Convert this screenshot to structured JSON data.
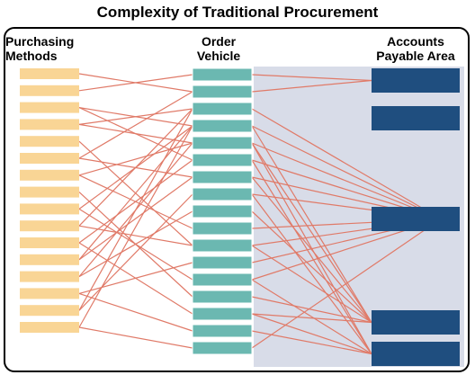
{
  "title": "Complexity of Traditional Procurement",
  "columns": {
    "left": {
      "line1": "Purchasing",
      "line2": "Methods"
    },
    "mid": {
      "line1": "Order",
      "line2": "Vehicle"
    },
    "right": {
      "line1": "Accounts",
      "line2": "Payable Area"
    }
  },
  "colors": {
    "left_box": "#f9d595",
    "mid_box": "#6bb8b1",
    "right_box": "#1f4e7f",
    "shade": "#d8dce8",
    "connector": "#e07a68"
  },
  "counts": {
    "left": 16,
    "mid": 17,
    "right": 5
  },
  "links_left_mid": [
    [
      1,
      0
    ],
    [
      2,
      3
    ],
    [
      2,
      5
    ],
    [
      3,
      2
    ],
    [
      3,
      4
    ],
    [
      5,
      1
    ],
    [
      5,
      6
    ],
    [
      6,
      4
    ],
    [
      6,
      9
    ],
    [
      8,
      3
    ],
    [
      8,
      12
    ],
    [
      9,
      2
    ],
    [
      10,
      5
    ],
    [
      10,
      14
    ],
    [
      11,
      3
    ],
    [
      12,
      4
    ],
    [
      12,
      8
    ],
    [
      13,
      11
    ],
    [
      14,
      2
    ],
    [
      14,
      7
    ],
    [
      15,
      3
    ],
    [
      15,
      16
    ],
    [
      4,
      10
    ],
    [
      7,
      13
    ],
    [
      0,
      1
    ],
    [
      11,
      6
    ],
    [
      13,
      15
    ],
    [
      9,
      10
    ]
  ],
  "links_mid_right": [
    [
      0,
      0
    ],
    [
      1,
      0
    ],
    [
      3,
      2
    ],
    [
      3,
      3
    ],
    [
      4,
      2
    ],
    [
      4,
      4
    ],
    [
      5,
      2
    ],
    [
      6,
      2
    ],
    [
      7,
      2
    ],
    [
      8,
      3
    ],
    [
      9,
      2
    ],
    [
      10,
      3
    ],
    [
      11,
      2
    ],
    [
      12,
      4
    ],
    [
      13,
      3
    ],
    [
      14,
      3
    ],
    [
      15,
      4
    ],
    [
      16,
      2
    ],
    [
      2,
      2
    ],
    [
      5,
      4
    ],
    [
      7,
      4
    ],
    [
      12,
      2
    ],
    [
      14,
      4
    ],
    [
      4,
      3
    ],
    [
      6,
      3
    ],
    [
      10,
      2
    ]
  ]
}
